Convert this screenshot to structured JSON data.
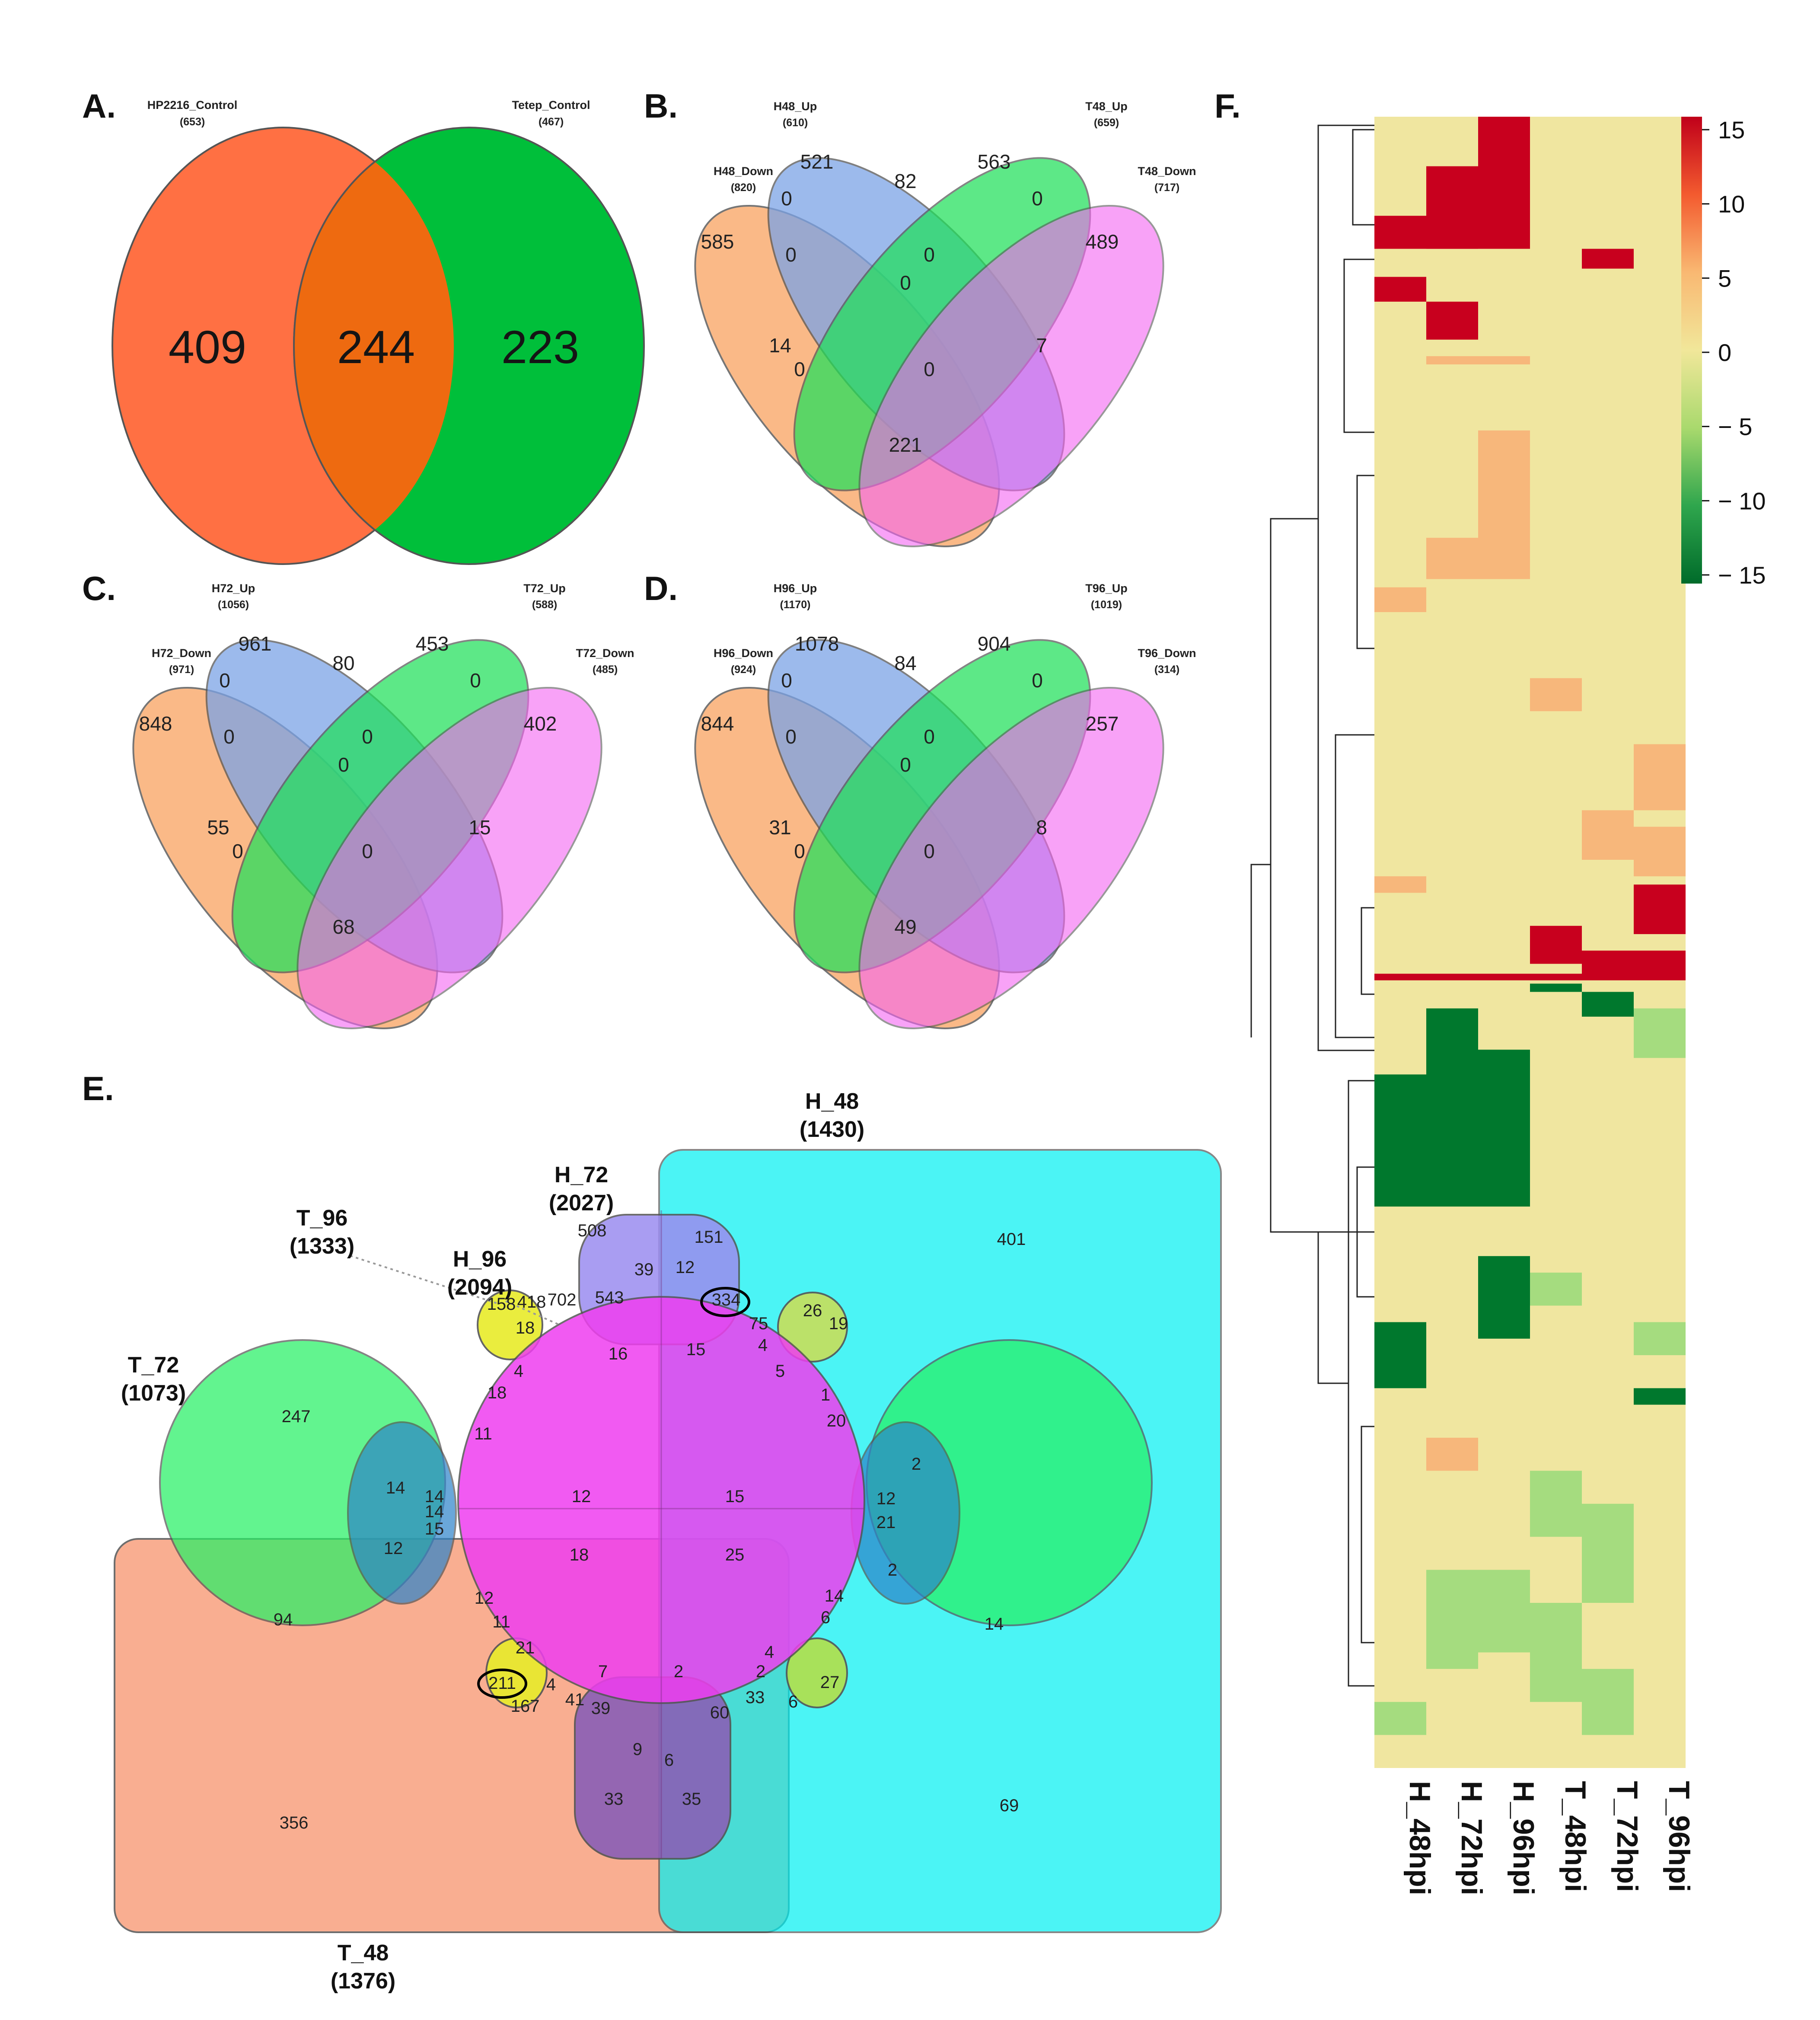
{
  "panels": {
    "A": {
      "letter": "A.",
      "sets": [
        {
          "name": "HP2216_Control",
          "count": "(653)",
          "color": "#ff7043"
        },
        {
          "name": "Tetep_Control",
          "count": "(467)",
          "color": "#00bf3a"
        }
      ],
      "regions": {
        "left_only": "409",
        "overlap": "244",
        "right_only": "223"
      },
      "overlap_color": "#ee6a10"
    },
    "B": {
      "letter": "B.",
      "sets": [
        {
          "name": "H48_Down",
          "count": "(820)",
          "color": "#f9a86a"
        },
        {
          "name": "H48_Up",
          "count": "(610)",
          "color": "#7ba3e6"
        },
        {
          "name": "T48_Up",
          "count": "(659)",
          "color": "#1fe05a"
        },
        {
          "name": "T48_Down",
          "count": "(717)",
          "color": "#f565f3"
        }
      ],
      "regions": [
        "521",
        "563",
        "0",
        "82",
        "0",
        "585",
        "0",
        "0",
        "489",
        "0",
        "14",
        "7",
        "0",
        "0",
        "221"
      ]
    },
    "C": {
      "letter": "C.",
      "sets": [
        {
          "name": "H72_Down",
          "count": "(971)",
          "color": "#f9a86a"
        },
        {
          "name": "H72_Up",
          "count": "(1056)",
          "color": "#7ba3e6"
        },
        {
          "name": "T72_Up",
          "count": "(588)",
          "color": "#1fe05a"
        },
        {
          "name": "T72_Down",
          "count": "(485)",
          "color": "#f565f3"
        }
      ],
      "regions": [
        "961",
        "453",
        "0",
        "80",
        "0",
        "848",
        "0",
        "0",
        "402",
        "0",
        "55",
        "15",
        "0",
        "0",
        "68"
      ]
    },
    "D": {
      "letter": "D.",
      "sets": [
        {
          "name": "H96_Down",
          "count": "(924)",
          "color": "#f9a86a"
        },
        {
          "name": "H96_Up",
          "count": "(1170)",
          "color": "#7ba3e6"
        },
        {
          "name": "T96_Up",
          "count": "(1019)",
          "color": "#1fe05a"
        },
        {
          "name": "T96_Down",
          "count": "(314)",
          "color": "#f565f3"
        }
      ],
      "regions": [
        "1078",
        "904",
        "0",
        "84",
        "0",
        "844",
        "0",
        "0",
        "257",
        "0",
        "31",
        "8",
        "0",
        "0",
        "49"
      ]
    },
    "E": {
      "letter": "E.",
      "sets": [
        {
          "name": "H_48",
          "count": "(1430)",
          "color": "#00f0f2"
        },
        {
          "name": "H_72",
          "count": "(2027)",
          "color": "#9b8cf0"
        },
        {
          "name": "T_96",
          "count": "(1333)",
          "color": "#e8ec2a"
        },
        {
          "name": "H_96",
          "count": "(2094)",
          "color": "#ef3ef0"
        },
        {
          "name": "T_72",
          "count": "(1073)",
          "color": "#27f065"
        },
        {
          "name": "T_48",
          "count": "(1376)",
          "color": "#f8a07e"
        }
      ],
      "regions": [
        "401",
        "508",
        "151",
        "39",
        "12",
        "543",
        "702",
        "418",
        "158",
        "18",
        "16",
        "15",
        "334",
        "75",
        "4",
        "5",
        "26",
        "19",
        "247",
        "14",
        "18",
        "4",
        "11",
        "1",
        "20",
        "2",
        "14",
        "12",
        "15",
        "14",
        "15",
        "12",
        "18",
        "25",
        "12",
        "21",
        "2",
        "12",
        "11",
        "14",
        "6",
        "94",
        "21",
        "4",
        "7",
        "2",
        "4",
        "2",
        "14",
        "211",
        "41",
        "39",
        "60",
        "33",
        "27",
        "6",
        "167",
        "9",
        "6",
        "33",
        "35",
        "356",
        "69"
      ]
    },
    "F": {
      "letter": "F.",
      "columns": [
        "H_48hpi",
        "H_72hpi",
        "H_96hpi",
        "T_48hpi",
        "T_72hpi",
        "T_96hpi"
      ],
      "colorbar": {
        "ticks": [
          "15",
          "10",
          "5",
          "0",
          "− 5",
          "− 10",
          "− 15"
        ],
        "colors": [
          "#c0001a",
          "#f35b2f",
          "#f9b872",
          "#f1e79a",
          "#a9d96d",
          "#2fa64d",
          "#006b2a"
        ]
      },
      "cell_colors": {
        "high": "#c8001e",
        "mid_high": "#f7b77b",
        "neutral": "#f0e6a0",
        "mid_low": "#a5dc7f",
        "low": "#00782d"
      }
    }
  }
}
